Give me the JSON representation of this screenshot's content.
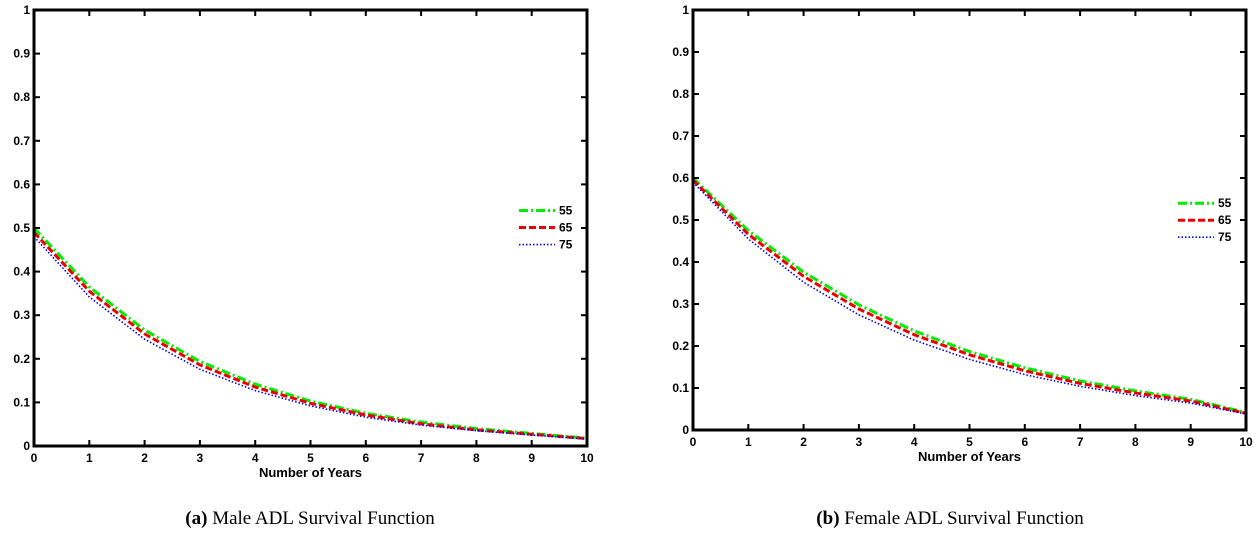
{
  "chart_data": [
    {
      "type": "line",
      "caption_label": "(a)",
      "caption_text": "Male ADL Survival Function",
      "xlabel": "Number of Years",
      "ylabel": "",
      "xlim": [
        0,
        10
      ],
      "ylim": [
        0,
        1
      ],
      "xticks": [
        0,
        1,
        2,
        3,
        4,
        5,
        6,
        7,
        8,
        9,
        10
      ],
      "yticks": [
        0,
        0.1,
        0.2,
        0.3,
        0.4,
        0.5,
        0.6,
        0.7,
        0.8,
        0.9,
        1
      ],
      "grid": false,
      "legend_position": "right-middle",
      "x": [
        0,
        1,
        2,
        3,
        4,
        5,
        6,
        7,
        8,
        9,
        10
      ],
      "series": [
        {
          "name": "55",
          "color": "#00ee00",
          "style": "dashdot",
          "values": [
            0.5,
            0.365,
            0.266,
            0.194,
            0.142,
            0.103,
            0.075,
            0.055,
            0.04,
            0.029,
            0.018
          ]
        },
        {
          "name": "65",
          "color": "#ee0000",
          "style": "dashed",
          "values": [
            0.49,
            0.355,
            0.257,
            0.186,
            0.135,
            0.098,
            0.071,
            0.051,
            0.037,
            0.027,
            0.017
          ]
        },
        {
          "name": "75",
          "color": "#0000ee",
          "style": "dotted",
          "values": [
            0.48,
            0.342,
            0.245,
            0.176,
            0.127,
            0.092,
            0.066,
            0.048,
            0.035,
            0.025,
            0.016
          ]
        }
      ]
    },
    {
      "type": "line",
      "caption_label": "(b)",
      "caption_text": "Female ADL Survival Function",
      "xlabel": "Number of Years",
      "ylabel": "",
      "xlim": [
        0,
        10
      ],
      "ylim": [
        0,
        1
      ],
      "xticks": [
        0,
        1,
        2,
        3,
        4,
        5,
        6,
        7,
        8,
        9,
        10
      ],
      "yticks": [
        0,
        0.1,
        0.2,
        0.3,
        0.4,
        0.5,
        0.6,
        0.7,
        0.8,
        0.9,
        1
      ],
      "grid": false,
      "legend_position": "right-middle",
      "x": [
        0,
        1,
        2,
        3,
        4,
        5,
        6,
        7,
        8,
        9,
        10
      ],
      "series": [
        {
          "name": "55",
          "color": "#00ee00",
          "style": "dashdot",
          "values": [
            0.6,
            0.475,
            0.376,
            0.298,
            0.236,
            0.187,
            0.148,
            0.117,
            0.093,
            0.073,
            0.042
          ]
        },
        {
          "name": "65",
          "color": "#ee0000",
          "style": "dashed",
          "values": [
            0.595,
            0.466,
            0.366,
            0.288,
            0.227,
            0.179,
            0.141,
            0.111,
            0.088,
            0.069,
            0.04
          ]
        },
        {
          "name": "75",
          "color": "#0000ee",
          "style": "dotted",
          "values": [
            0.59,
            0.455,
            0.352,
            0.274,
            0.214,
            0.168,
            0.132,
            0.104,
            0.082,
            0.064,
            0.038
          ]
        }
      ]
    }
  ]
}
